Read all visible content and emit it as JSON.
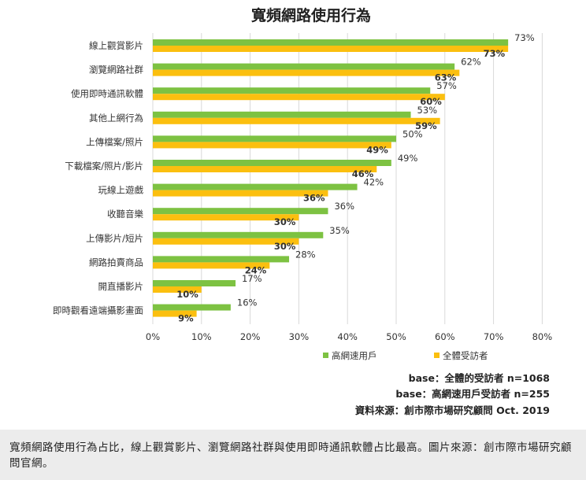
{
  "chart_data": {
    "type": "bar",
    "orientation": "horizontal",
    "title": "寬頻網路使用行為",
    "categories": [
      "線上觀賞影片",
      "瀏覽網路社群",
      "使用即時通訊軟體",
      "其他上網行為",
      "上傳檔案/照片",
      "下載檔案/照片/影片",
      "玩線上遊戲",
      "收聽音樂",
      "上傳影片/短片",
      "網路拍賣商品",
      "開直播影片",
      "即時觀看遠端攝影畫面"
    ],
    "series": [
      {
        "name": "高網速用戶",
        "color": "#7dc242",
        "values": [
          73,
          62,
          57,
          53,
          50,
          49,
          42,
          36,
          35,
          28,
          17,
          16
        ],
        "labels": [
          "73%",
          "62%",
          "57%",
          "53%",
          "50%",
          "49%",
          "42%",
          "36%",
          "35%",
          "28%",
          "17%",
          "16%"
        ]
      },
      {
        "name": "全體受訪者",
        "color": "#fbbf0f",
        "values": [
          73,
          63,
          60,
          59,
          49,
          46,
          36,
          30,
          30,
          24,
          10,
          9
        ],
        "labels": [
          "73%",
          "63%",
          "60%",
          "59%",
          "49%",
          "46%",
          "36%",
          "30%",
          "30%",
          "24%",
          "10%",
          "9%"
        ]
      }
    ],
    "xlim": [
      0,
      80
    ],
    "xticks": [
      "0%",
      "10%",
      "20%",
      "30%",
      "40%",
      "50%",
      "60%",
      "70%",
      "80%"
    ],
    "grid": true,
    "legend_position": "bottom"
  },
  "notes": [
    "base：全體的受訪者 n=1068",
    "base：高網速用戶受訪者 n=255",
    "資料來源：創市際市場研究顧問 Oct. 2019"
  ],
  "caption": "寬頻網路使用行為占比，線上觀賞影片、瀏覽網路社群與使用即時通訊軟體占比最高。圖片來源：創市際市場研究顧問官網。"
}
